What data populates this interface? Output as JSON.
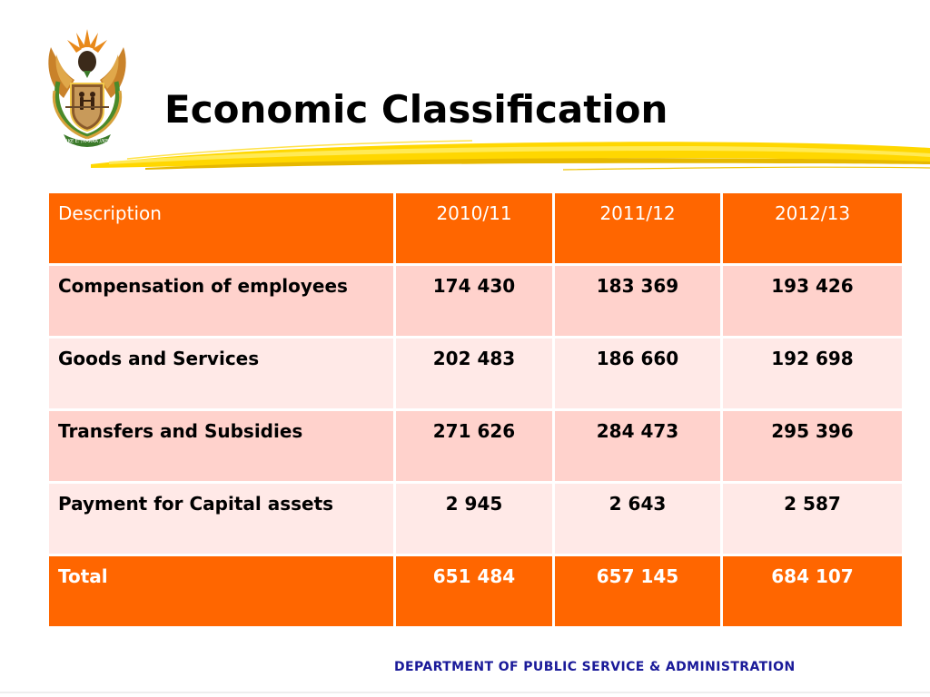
{
  "slide": {
    "title": "Economic Classification",
    "footer": "DEPARTMENT OF PUBLIC SERVICE & ADMINISTRATION",
    "emblem_motto": "!KE E: /XARRA //KE"
  },
  "colors": {
    "header_orange": "#ff6600",
    "row_pink_dark": "#ffd2cc",
    "row_pink_light": "#ffe9e7",
    "brush_yellow": "#ffd700",
    "footer_text": "#1a1a99"
  },
  "table": {
    "columns": [
      "Description",
      "2010/11",
      "2011/12",
      "2012/13"
    ],
    "rows": [
      {
        "description": "Compensation of employees",
        "values": [
          "174 430",
          "183 369",
          "193 426"
        ]
      },
      {
        "description": "Goods and Services",
        "values": [
          "202 483",
          "186 660",
          "192 698"
        ]
      },
      {
        "description": "Transfers and Subsidies",
        "values": [
          "271 626",
          "284 473",
          "295 396"
        ]
      },
      {
        "description": "Payment for Capital assets",
        "values": [
          "2 945",
          "2 643",
          "2 587"
        ]
      }
    ],
    "total": {
      "description": "Total",
      "values": [
        "651 484",
        "657 145",
        "684 107"
      ]
    }
  }
}
